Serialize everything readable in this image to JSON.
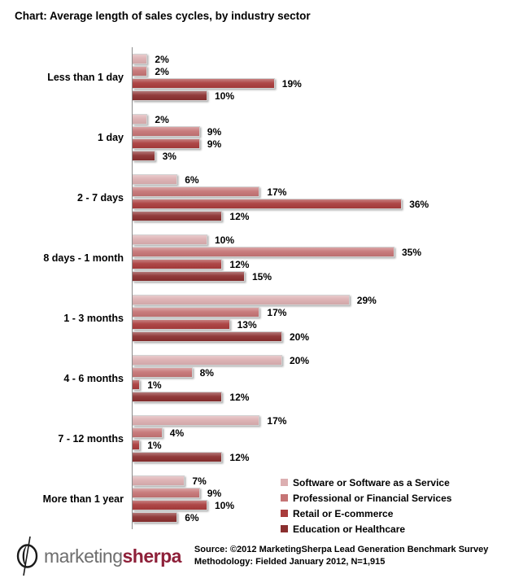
{
  "title": "Chart: Average length of sales cycles, by industry sector",
  "chart_data": {
    "type": "bar",
    "orientation": "horizontal",
    "title": "Chart: Average length of sales cycles, by industry sector",
    "xlabel": "",
    "ylabel": "",
    "value_suffix": "%",
    "xlim": [
      0,
      49
    ],
    "grid": false,
    "legend_position": "bottom-right",
    "axis_color": "#8c8c8c",
    "categories": [
      "Less than 1 day",
      "1 day",
      "2 - 7 days",
      "8 days - 1 month",
      "1 - 3 months",
      "4 - 6 months",
      "7 - 12 months",
      "More than 1 year"
    ],
    "series": [
      {
        "name": "Software or Software as a Service",
        "color": "#dcafb1",
        "values": [
          2,
          2,
          6,
          10,
          29,
          20,
          17,
          7
        ]
      },
      {
        "name": "Professional or Financial Services",
        "color": "#c57475",
        "values": [
          2,
          9,
          17,
          35,
          17,
          8,
          4,
          9
        ]
      },
      {
        "name": "Retail or E-commerce",
        "color": "#a93c3c",
        "values": [
          19,
          9,
          36,
          12,
          13,
          1,
          1,
          10
        ]
      },
      {
        "name": "Education or Healthcare",
        "color": "#8a2f2f",
        "values": [
          10,
          3,
          12,
          15,
          20,
          12,
          12,
          6
        ]
      }
    ]
  },
  "footer": {
    "logo": {
      "brand_first": "marketing",
      "brand_second": "sherpa"
    },
    "source_line1": "Source: ©2012 MarketingSherpa Lead Generation Benchmark Survey",
    "source_line2": "Methodology: Fielded January 2012, N=1,915"
  }
}
